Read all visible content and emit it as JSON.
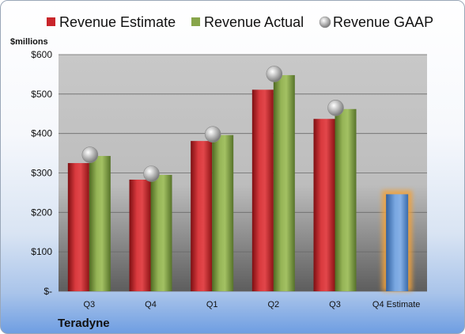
{
  "company": "Teradyne",
  "chart_data": {
    "type": "bar",
    "ylabel": "$millions",
    "ylim": [
      0,
      600
    ],
    "yticks": [
      0,
      100,
      200,
      300,
      400,
      500,
      600
    ],
    "ytick_labels": [
      "$-",
      "$100",
      "$200",
      "$300",
      "$400",
      "$500",
      "$600"
    ],
    "categories": [
      "Q3",
      "Q4",
      "Q1",
      "Q2",
      "Q3",
      "Q4 Estimate"
    ],
    "series": [
      {
        "name": "Revenue Estimate",
        "kind": "bar",
        "color": "#c9262b",
        "values": [
          325,
          283,
          381,
          511,
          437,
          null
        ]
      },
      {
        "name": "Revenue Actual",
        "kind": "bar",
        "color": "#87a54a",
        "values": [
          343,
          295,
          396,
          548,
          462,
          null
        ]
      },
      {
        "name": "Revenue GAAP",
        "kind": "marker",
        "color": "#b8b8b8",
        "values": [
          346,
          298,
          398,
          551,
          465,
          null
        ]
      },
      {
        "name": "Q4 Estimate",
        "kind": "bar",
        "color": "#5b8fd0",
        "highlight": "#f2a23a",
        "values": [
          null,
          null,
          null,
          null,
          null,
          246
        ]
      }
    ],
    "grid": true,
    "legend": "top"
  }
}
